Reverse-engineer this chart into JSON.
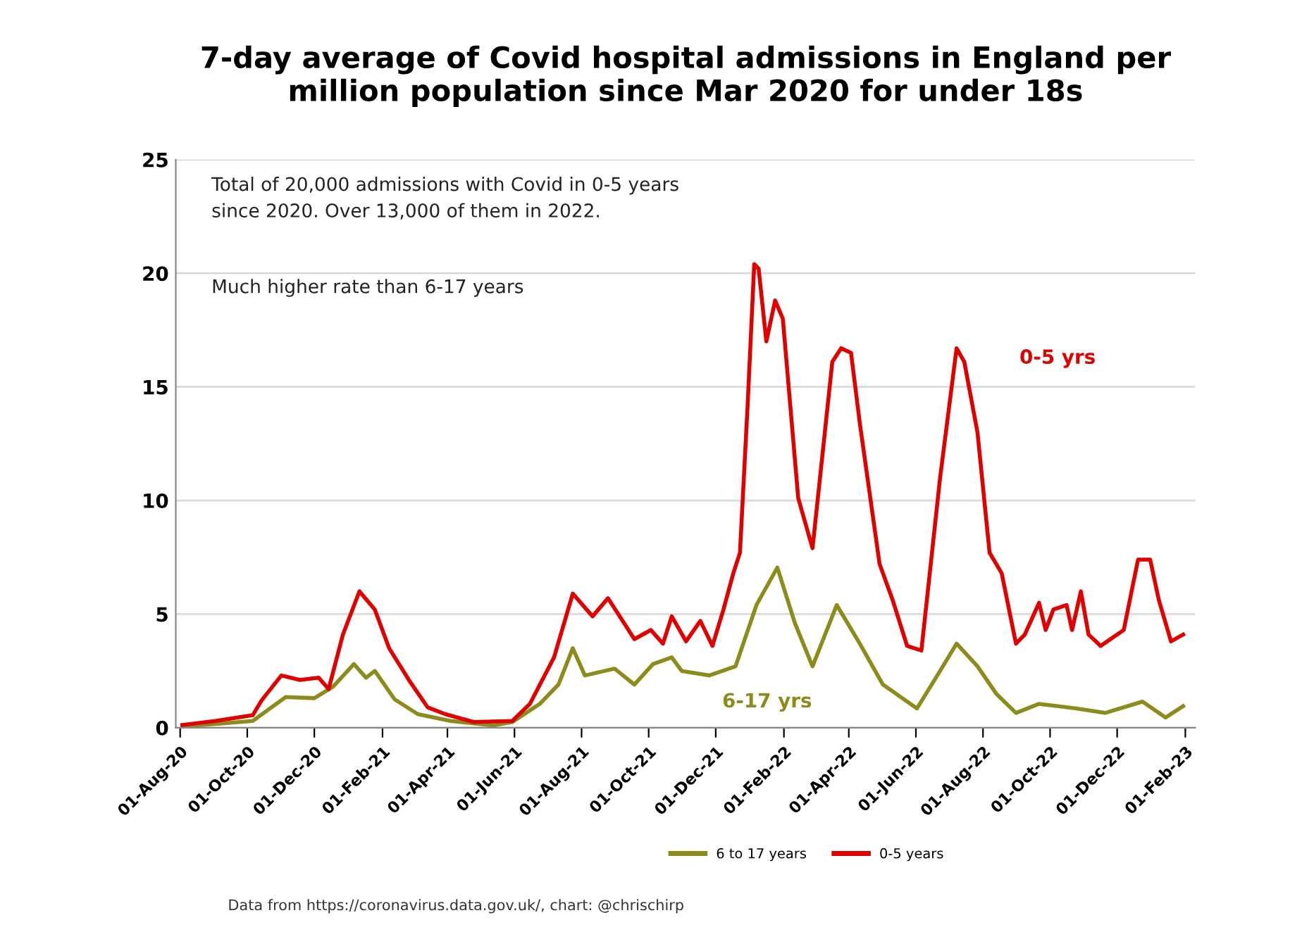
{
  "chart_data": {
    "type": "line",
    "title": "7-day average of Covid hospital admissions in England per\nmillion population since Mar 2020 for under 18s",
    "annotations": [
      "Total of 20,000 admissions with Covid in 0-5 years\nsince 2020. Over 13,000 of them in 2022.",
      "Much higher rate than 6-17 years",
      "0-5 yrs",
      "6-17 yrs",
      "Data from https://coronavirus.data.gov.uk/, chart: @chrischirp"
    ],
    "series": [
      {
        "name": "6 to 17 years",
        "color": "#8c8c1c",
        "x": [
          "2020-08-03",
          "2020-10-06",
          "2020-11-05",
          "2020-12-01",
          "2020-12-18",
          "2021-01-06",
          "2021-01-17",
          "2021-01-25",
          "2021-02-12",
          "2021-03-05",
          "2021-04-04",
          "2021-05-13",
          "2021-05-30",
          "2021-06-24",
          "2021-07-11",
          "2021-07-24",
          "2021-08-04",
          "2021-08-31",
          "2021-09-18",
          "2021-10-05",
          "2021-10-22",
          "2021-10-31",
          "2021-11-25",
          "2021-12-19",
          "2022-01-07",
          "2022-01-26",
          "2022-02-11",
          "2022-02-27",
          "2022-03-21",
          "2022-04-11",
          "2022-05-02",
          "2022-06-02",
          "2022-06-23",
          "2022-07-08",
          "2022-07-27",
          "2022-08-13",
          "2022-08-31",
          "2022-09-21",
          "2022-10-25",
          "2022-11-20",
          "2022-12-24",
          "2023-01-14",
          "2023-01-30"
        ],
        "values": [
          0.05,
          0.3,
          1.35,
          1.3,
          1.8,
          2.8,
          2.2,
          2.5,
          1.25,
          0.6,
          0.3,
          0.1,
          0.25,
          1.05,
          1.9,
          3.5,
          2.3,
          2.6,
          1.9,
          2.8,
          3.1,
          2.5,
          2.3,
          2.7,
          5.4,
          7.05,
          4.6,
          2.7,
          5.4,
          3.7,
          1.9,
          0.85,
          2.5,
          3.7,
          2.7,
          1.5,
          0.65,
          1.05,
          0.85,
          0.65,
          1.15,
          0.45,
          0.95
        ]
      },
      {
        "name": "0-5 years",
        "color": "#e00000",
        "x": [
          "2020-08-03",
          "2020-09-02",
          "2020-10-06",
          "2020-10-14",
          "2020-11-01",
          "2020-11-18",
          "2020-12-05",
          "2020-12-14",
          "2020-12-27",
          "2021-01-11",
          "2021-01-25",
          "2021-02-07",
          "2021-02-25",
          "2021-03-14",
          "2021-03-30",
          "2021-04-25",
          "2021-05-30",
          "2021-06-15",
          "2021-07-07",
          "2021-07-24",
          "2021-08-11",
          "2021-08-25",
          "2021-09-18",
          "2021-10-03",
          "2021-10-14",
          "2021-10-22",
          "2021-11-04",
          "2021-11-17",
          "2021-11-28",
          "2021-12-08",
          "2021-12-17",
          "2021-12-23",
          "2021-12-30",
          "2022-01-05",
          "2022-01-09",
          "2022-01-16",
          "2022-01-24",
          "2022-01-31",
          "2022-02-14",
          "2022-02-27",
          "2022-03-17",
          "2022-03-25",
          "2022-04-03",
          "2022-04-11",
          "2022-04-29",
          "2022-05-11",
          "2022-05-24",
          "2022-06-06",
          "2022-06-23",
          "2022-07-08",
          "2022-07-15",
          "2022-07-27",
          "2022-08-07",
          "2022-08-18",
          "2022-08-31",
          "2022-09-08",
          "2022-09-21",
          "2022-09-27",
          "2022-10-04",
          "2022-10-16",
          "2022-10-21",
          "2022-10-29",
          "2022-11-05",
          "2022-11-16",
          "2022-12-07",
          "2022-12-20",
          "2022-12-31",
          "2023-01-08",
          "2023-01-19",
          "2023-01-30"
        ],
        "values": [
          0.12,
          0.3,
          0.55,
          1.2,
          2.3,
          2.1,
          2.2,
          1.7,
          4.1,
          6.0,
          5.2,
          3.5,
          2.1,
          0.9,
          0.6,
          0.25,
          0.3,
          1.05,
          3.1,
          5.9,
          4.9,
          5.7,
          3.9,
          4.3,
          3.7,
          4.9,
          3.8,
          4.7,
          3.6,
          5.2,
          6.8,
          7.7,
          14.2,
          20.4,
          20.2,
          17,
          18.8,
          18,
          10.1,
          7.9,
          16.1,
          16.7,
          16.5,
          13.4,
          7.2,
          5.6,
          3.6,
          3.4,
          11,
          16.7,
          16.1,
          13,
          7.7,
          6.8,
          3.7,
          4.1,
          5.5,
          4.3,
          5.2,
          5.4,
          4.3,
          6,
          4.1,
          3.6,
          4.3,
          7.4,
          7.4,
          5.6,
          3.8,
          4.1
        ]
      }
    ],
    "xlim": [
      "2020-07-28",
      "2023-02-10"
    ],
    "xticks": [
      {
        "value": "2020-08-01",
        "label": "01-Aug-20"
      },
      {
        "value": "2020-10-01",
        "label": "01-Oct-20"
      },
      {
        "value": "2020-12-01",
        "label": "01-Dec-20"
      },
      {
        "value": "2021-02-01",
        "label": "01-Feb-21"
      },
      {
        "value": "2021-04-01",
        "label": "01-Apr-21"
      },
      {
        "value": "2021-06-01",
        "label": "01-Jun-21"
      },
      {
        "value": "2021-08-01",
        "label": "01-Aug-21"
      },
      {
        "value": "2021-10-01",
        "label": "01-Oct-21"
      },
      {
        "value": "2021-12-01",
        "label": "01-Dec-21"
      },
      {
        "value": "2022-02-01",
        "label": "01-Feb-22"
      },
      {
        "value": "2022-04-01",
        "label": "01-Apr-22"
      },
      {
        "value": "2022-06-01",
        "label": "01-Jun-22"
      },
      {
        "value": "2022-08-01",
        "label": "01-Aug-22"
      },
      {
        "value": "2022-10-01",
        "label": "01-Oct-22"
      },
      {
        "value": "2022-12-01",
        "label": "01-Dec-22"
      },
      {
        "value": "2023-02-01",
        "label": "01-Feb-23"
      }
    ],
    "ylim": [
      0,
      25
    ],
    "yticks": [
      0,
      5,
      10,
      15,
      20,
      25
    ],
    "grid": "y",
    "legend": "bottom",
    "marker": "none",
    "line_style": "solid"
  }
}
